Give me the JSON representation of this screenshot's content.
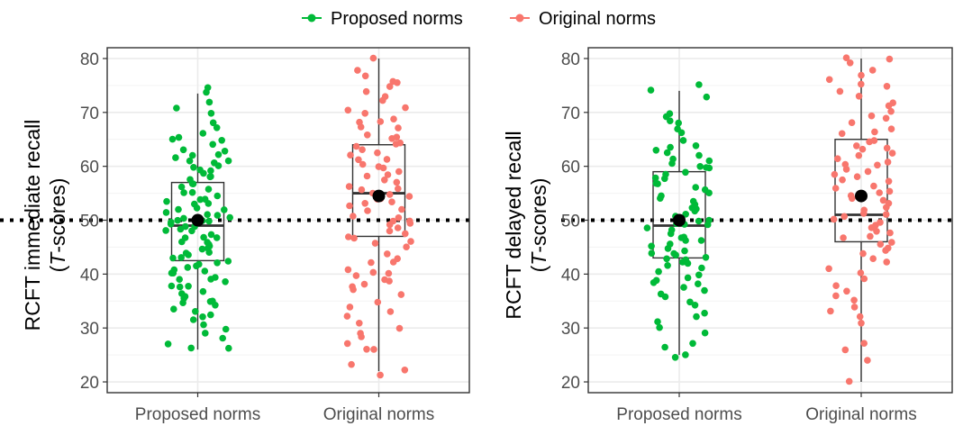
{
  "colors": {
    "proposed": "#00BA38",
    "original": "#F8766D",
    "grid_major": "#ebebeb",
    "grid_minor": "#f3f3f3",
    "panel_border": "#333333",
    "box_line": "#333333",
    "mean_point": "#000000",
    "reference_line": "#000000"
  },
  "legend": {
    "placement": "top",
    "items": [
      {
        "label": "Proposed norms",
        "color": "#00BA38"
      },
      {
        "label": "Original norms",
        "color": "#F8766D"
      }
    ]
  },
  "chart_data": [
    {
      "type": "box+jitter",
      "ylabel_line1": "RCFT immediate recall",
      "ylabel_line2_prefix": "(",
      "ylabel_line2_italic": "T",
      "ylabel_line2_suffix": "-scores)",
      "categories": [
        "Proposed norms",
        "Original norms"
      ],
      "ylim": [
        18,
        82
      ],
      "yticks": [
        "20",
        "30",
        "40",
        "50",
        "60",
        "70",
        "80"
      ],
      "grid": true,
      "reference_line": 50,
      "series": [
        {
          "name": "Proposed norms",
          "box": {
            "min": 26,
            "q1": 42.5,
            "median": 49,
            "q3": 57,
            "max": 73.5
          },
          "mean": 50,
          "points": [
            74.5,
            74,
            72,
            71,
            70,
            68,
            67,
            66,
            65.5,
            65,
            65,
            64,
            63,
            63,
            62,
            62,
            61.5,
            61,
            61,
            60.5,
            60,
            60,
            59.5,
            59,
            58.5,
            58,
            58,
            57.5,
            57,
            56.5,
            56,
            55.5,
            55,
            55,
            54.5,
            54,
            54,
            53.5,
            53,
            53,
            52.5,
            52,
            52,
            51.5,
            51,
            51,
            50.5,
            50.5,
            50,
            50,
            50,
            49.5,
            49.5,
            49,
            49,
            48.5,
            48,
            48,
            47.5,
            47,
            47,
            46.5,
            46,
            46,
            45.5,
            45,
            45,
            44.5,
            44,
            44,
            43.5,
            43,
            43,
            42.5,
            42,
            42,
            41.5,
            41,
            41,
            40.5,
            40,
            40,
            39.5,
            39,
            39,
            38.5,
            38,
            38,
            37.5,
            37,
            36.5,
            36,
            35.5,
            35,
            35,
            34.5,
            34,
            33.5,
            33,
            32.5,
            32,
            31.5,
            30.5,
            30,
            29,
            28,
            27,
            26.5,
            26
          ]
        },
        {
          "name": "Original norms",
          "box": {
            "min": 22,
            "q1": 47,
            "median": 55,
            "q3": 64,
            "max": 80
          },
          "mean": 54.5,
          "points": [
            80,
            78,
            77,
            76,
            75.5,
            75,
            74,
            73,
            72,
            71,
            70.5,
            70,
            69,
            68.5,
            68,
            67.5,
            67,
            66,
            65.5,
            65,
            64.5,
            64,
            63.5,
            63,
            62.5,
            62,
            61.5,
            61,
            60.5,
            60,
            59.5,
            59,
            58.5,
            58,
            57.5,
            57,
            56.5,
            56,
            55.5,
            55,
            55,
            54.5,
            54,
            54,
            53.5,
            53,
            52.5,
            52,
            51.5,
            51,
            50.5,
            50,
            50,
            49.5,
            49,
            48.5,
            48,
            47.5,
            47,
            46.5,
            46,
            45.5,
            45,
            44,
            43,
            42,
            42,
            41,
            40.5,
            40,
            39.5,
            39,
            38.5,
            38,
            37.5,
            37,
            36,
            35,
            34,
            33,
            32,
            31,
            30,
            29,
            28.5,
            27,
            26,
            26,
            23,
            22,
            21.5
          ]
        }
      ]
    },
    {
      "type": "box+jitter",
      "ylabel_line1": "RCFT delayed recall",
      "ylabel_line2_prefix": "(",
      "ylabel_line2_italic": "T",
      "ylabel_line2_suffix": "-scores)",
      "categories": [
        "Proposed norms",
        "Original norms"
      ],
      "ylim": [
        18,
        82
      ],
      "yticks": [
        "20",
        "30",
        "40",
        "50",
        "60",
        "70",
        "80"
      ],
      "grid": true,
      "reference_line": 50,
      "series": [
        {
          "name": "Proposed norms",
          "box": {
            "min": 25,
            "q1": 43,
            "median": 49,
            "q3": 59,
            "max": 74
          },
          "mean": 50,
          "points": [
            75,
            74,
            73,
            70,
            69,
            68.5,
            68,
            67,
            66,
            65,
            64,
            63.5,
            63,
            62.5,
            62,
            61.5,
            61,
            60.5,
            60,
            60,
            59.5,
            59,
            58.5,
            58,
            57.5,
            57,
            56.5,
            56,
            55.5,
            55,
            54.5,
            54,
            53.5,
            53,
            52.5,
            52,
            51.5,
            51,
            50.5,
            50,
            50,
            49.5,
            49,
            49,
            48.5,
            48,
            47.5,
            47,
            46.5,
            46,
            46,
            45.5,
            45,
            45,
            44.5,
            44,
            44,
            43.5,
            43,
            43,
            42.5,
            42,
            42,
            41.5,
            41,
            40.5,
            40,
            39.5,
            39,
            38.5,
            38,
            37.5,
            37,
            36.5,
            36,
            35,
            34,
            33,
            32,
            31,
            30,
            29,
            27,
            26.5,
            25,
            24.5
          ]
        },
        {
          "name": "Original norms",
          "box": {
            "min": 20,
            "q1": 46,
            "median": 51,
            "q3": 65,
            "max": 80
          },
          "mean": 54.5,
          "points": [
            80,
            80,
            79,
            78,
            77,
            76,
            75.5,
            75,
            74,
            73,
            72,
            71,
            70,
            69.5,
            69,
            68,
            67,
            66.5,
            66,
            65,
            64.5,
            64,
            63.5,
            63,
            62.5,
            62,
            61.5,
            61,
            60.5,
            60,
            59.5,
            59,
            58.5,
            58,
            57.5,
            57,
            56.5,
            56,
            55.5,
            55,
            54.5,
            54,
            53.5,
            53,
            52.5,
            52,
            51.5,
            51,
            50.5,
            50,
            49.5,
            49,
            48.5,
            48,
            47.5,
            47,
            46.5,
            46,
            45.5,
            45,
            44.5,
            44,
            43,
            42,
            41,
            40,
            39,
            38,
            37,
            36,
            35,
            34,
            33,
            32,
            31,
            27,
            26,
            24,
            20
          ]
        }
      ]
    }
  ]
}
